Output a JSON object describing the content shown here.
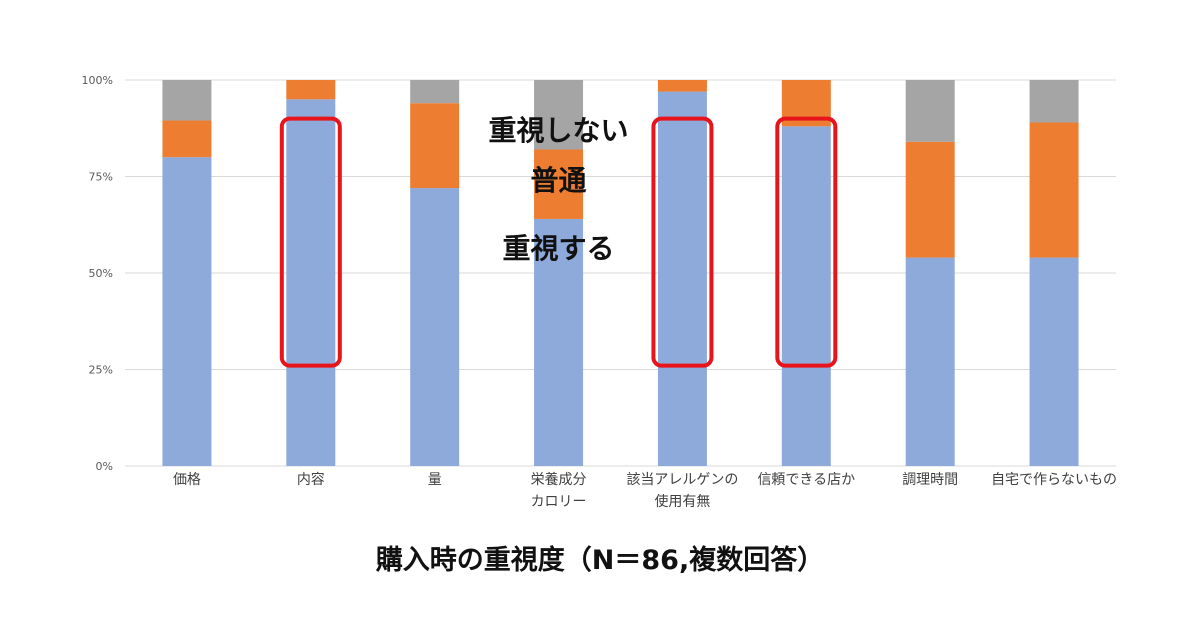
{
  "chart_data": {
    "type": "bar",
    "stacked": true,
    "percent": true,
    "title": "購入時の重視度（N＝86,複数回答）",
    "categories": [
      [
        "価格"
      ],
      [
        "内容"
      ],
      [
        "量"
      ],
      [
        "栄養成分",
        "カロリー"
      ],
      [
        "該当アレルゲンの",
        "使用有無"
      ],
      [
        "信頼できる店か"
      ],
      [
        "調理時間"
      ],
      [
        "自宅で作らないもの"
      ]
    ],
    "series": [
      {
        "name": "重視する",
        "color": "#8eaadb",
        "values": [
          80,
          95,
          72,
          64,
          97,
          88,
          54,
          54
        ]
      },
      {
        "name": "普通",
        "color": "#ed7d31",
        "values": [
          9.5,
          5,
          22,
          18,
          3,
          12,
          30,
          35
        ]
      },
      {
        "name": "重視しない",
        "color": "#a5a5a5",
        "values": [
          10.5,
          0,
          6,
          18,
          0,
          0,
          16,
          11
        ]
      }
    ],
    "yticks": [
      "0%",
      "25%",
      "50%",
      "75%",
      "100%"
    ],
    "ylim": [
      0,
      100
    ],
    "grid": true,
    "highlighted_categories": [
      1,
      4,
      5
    ],
    "highlight_color": "#e8141c",
    "highlight_range": [
      26,
      90
    ]
  }
}
